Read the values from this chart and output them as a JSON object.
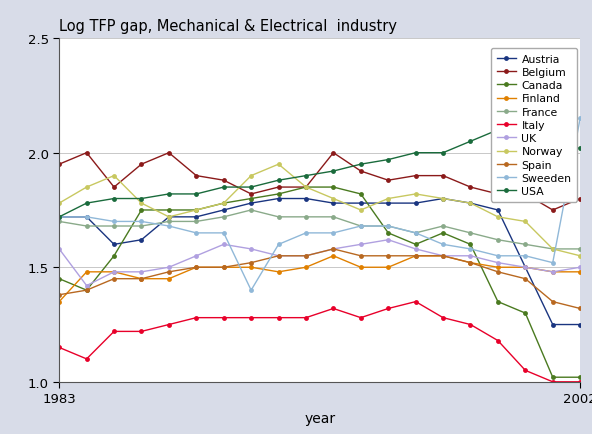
{
  "title": "Log TFP gap, Mechanical & Electrical  industry",
  "xlabel": "year",
  "years": [
    1983,
    1984,
    1985,
    1986,
    1987,
    1988,
    1989,
    1990,
    1991,
    1992,
    1993,
    1994,
    1995,
    1996,
    1997,
    1998,
    1999,
    2000,
    2001,
    2002
  ],
  "ylim": [
    1.0,
    2.5
  ],
  "yticks": [
    1.0,
    1.5,
    2.0,
    2.5
  ],
  "xticks": [
    1983,
    2002
  ],
  "countries": {
    "Austria": {
      "color": "#1a3580",
      "values": [
        1.72,
        1.72,
        1.6,
        1.62,
        1.72,
        1.72,
        1.75,
        1.78,
        1.8,
        1.8,
        1.78,
        1.78,
        1.78,
        1.78,
        1.8,
        1.78,
        1.75,
        1.5,
        1.25,
        1.25
      ]
    },
    "Belgium": {
      "color": "#8b1a1a",
      "values": [
        1.95,
        2.0,
        1.85,
        1.95,
        2.0,
        1.9,
        1.88,
        1.82,
        1.85,
        1.85,
        2.0,
        1.92,
        1.88,
        1.9,
        1.9,
        1.85,
        1.82,
        1.82,
        1.75,
        1.8
      ]
    },
    "Canada": {
      "color": "#4a7a20",
      "values": [
        1.45,
        1.4,
        1.55,
        1.75,
        1.75,
        1.75,
        1.78,
        1.8,
        1.82,
        1.85,
        1.85,
        1.82,
        1.65,
        1.6,
        1.65,
        1.6,
        1.35,
        1.3,
        1.02,
        1.02
      ]
    },
    "Finland": {
      "color": "#e08000",
      "values": [
        1.35,
        1.48,
        1.48,
        1.45,
        1.45,
        1.5,
        1.5,
        1.5,
        1.48,
        1.5,
        1.55,
        1.5,
        1.5,
        1.55,
        1.55,
        1.52,
        1.5,
        1.5,
        1.48,
        1.48
      ]
    },
    "France": {
      "color": "#8aaa8a",
      "values": [
        1.7,
        1.68,
        1.68,
        1.68,
        1.7,
        1.7,
        1.72,
        1.75,
        1.72,
        1.72,
        1.72,
        1.68,
        1.68,
        1.65,
        1.68,
        1.65,
        1.62,
        1.6,
        1.58,
        1.58
      ]
    },
    "Italy": {
      "color": "#e8002a",
      "values": [
        1.15,
        1.1,
        1.22,
        1.22,
        1.25,
        1.28,
        1.28,
        1.28,
        1.28,
        1.28,
        1.32,
        1.28,
        1.32,
        1.35,
        1.28,
        1.25,
        1.18,
        1.05,
        1.0,
        1.0
      ]
    },
    "UK": {
      "color": "#b0a0e0",
      "values": [
        1.58,
        1.42,
        1.48,
        1.48,
        1.5,
        1.55,
        1.6,
        1.58,
        1.55,
        1.55,
        1.58,
        1.6,
        1.62,
        1.58,
        1.55,
        1.55,
        1.52,
        1.5,
        1.48,
        1.5
      ]
    },
    "Norway": {
      "color": "#c8c860",
      "values": [
        1.78,
        1.85,
        1.9,
        1.78,
        1.72,
        1.75,
        1.78,
        1.9,
        1.95,
        1.85,
        1.8,
        1.75,
        1.8,
        1.82,
        1.8,
        1.78,
        1.72,
        1.7,
        1.58,
        1.55
      ]
    },
    "Spain": {
      "color": "#b86820",
      "values": [
        1.38,
        1.4,
        1.45,
        1.45,
        1.48,
        1.5,
        1.5,
        1.52,
        1.55,
        1.55,
        1.58,
        1.55,
        1.55,
        1.55,
        1.55,
        1.52,
        1.48,
        1.45,
        1.35,
        1.32
      ]
    },
    "Sweeden": {
      "color": "#90b8d8",
      "values": [
        1.72,
        1.72,
        1.7,
        1.7,
        1.68,
        1.65,
        1.65,
        1.4,
        1.6,
        1.65,
        1.65,
        1.68,
        1.68,
        1.65,
        1.6,
        1.58,
        1.55,
        1.55,
        1.52,
        2.15
      ]
    },
    "USA": {
      "color": "#1a6b3c",
      "values": [
        1.72,
        1.78,
        1.8,
        1.8,
        1.82,
        1.82,
        1.85,
        1.85,
        1.88,
        1.9,
        1.92,
        1.95,
        1.97,
        2.0,
        2.0,
        2.05,
        2.1,
        2.12,
        2.02,
        2.02
      ]
    }
  },
  "background_color": "#d8dce8",
  "plot_bg_color": "#ffffff",
  "legend_bg_color": "#ffffff",
  "grid_color": "#c8c8c8"
}
